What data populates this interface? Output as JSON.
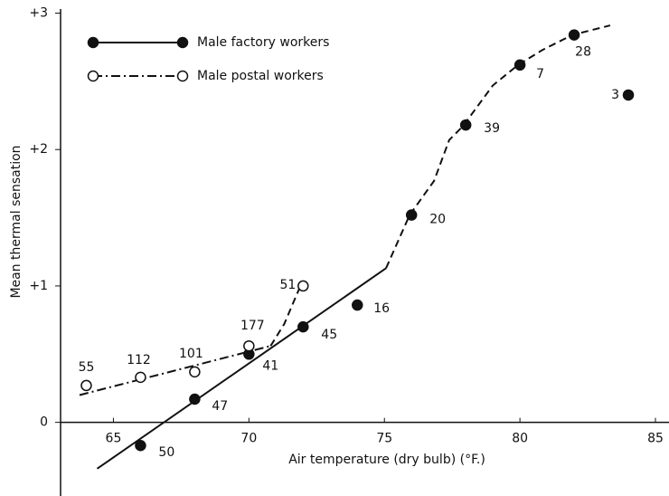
{
  "chart_data": {
    "type": "scatter",
    "xlabel": "Air temperature (dry bulb) (°F.)",
    "ylabel": "Mean thermal sensation",
    "xlim": [
      63.05,
      85.5
    ],
    "xticks": [
      65,
      70,
      75,
      80,
      85
    ],
    "ylim": [
      -0.54,
      3.03
    ],
    "yticks": [
      0,
      {
        "value": 1,
        "label": "+1"
      },
      {
        "value": 2,
        "label": "+2"
      },
      {
        "value": 3,
        "label": "+3"
      }
    ],
    "legend": "upper left",
    "series": [
      {
        "name": "Male factory workers",
        "color": "#111111",
        "marker": "filled",
        "x": [
          66,
          68,
          70,
          72,
          74,
          76,
          78,
          80,
          82,
          84
        ],
        "values": [
          -0.17,
          0.17,
          0.5,
          0.7,
          0.86,
          1.52,
          2.18,
          2.62,
          2.84,
          2.4
        ],
        "point_labels": [
          50,
          47,
          41,
          45,
          16,
          20,
          39,
          7,
          28,
          3
        ],
        "fits": [
          {
            "style": "solid",
            "x": [
              64.4,
              75.06
            ],
            "y": [
              -0.34,
              1.13
            ]
          },
          {
            "style": "dashed",
            "x": [
              75.06,
              75.93,
              76.83,
              77.39,
              77.89,
              79.0,
              79.93,
              80.83,
              81.93,
              83.33
            ],
            "y": [
              1.13,
              1.52,
              1.77,
              2.07,
              2.17,
              2.47,
              2.62,
              2.73,
              2.84,
              2.91
            ]
          }
        ]
      },
      {
        "name": "Male postal workers",
        "color": "#111111",
        "marker": "open",
        "x": [
          64,
          66,
          68,
          70,
          72
        ],
        "values": [
          0.27,
          0.33,
          0.37,
          0.56,
          1.0
        ],
        "point_labels": [
          55,
          112,
          101,
          177,
          51
        ],
        "fits": [
          {
            "style": "dashdot",
            "x": [
              63.75,
              70.8
            ],
            "y": [
              0.2,
              0.56
            ]
          },
          {
            "style": "dashed",
            "x": [
              70.8,
              71.3,
              71.9
            ],
            "y": [
              0.56,
              0.72,
              1.0
            ]
          }
        ]
      }
    ]
  }
}
